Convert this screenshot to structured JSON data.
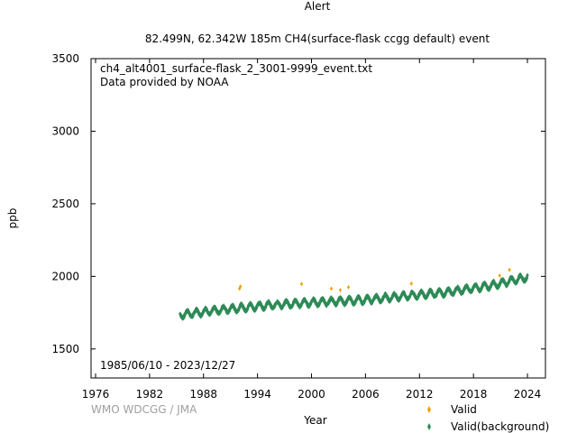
{
  "title_line1": "Alert",
  "title_line2": "82.499N, 62.342W 185m    CH4(surface-flask ccgg default) event",
  "chart_data": {
    "type": "scatter",
    "title": "Alert",
    "subtitle": "82.499N, 62.342W 185m    CH4(surface-flask ccgg default) event",
    "xlabel": "Year",
    "ylabel": "ppb",
    "xlim": [
      1975.5,
      2026
    ],
    "ylim": [
      1300,
      3500
    ],
    "x_ticks": [
      1976,
      1982,
      1988,
      1994,
      2000,
      2006,
      2012,
      2018,
      2024
    ],
    "y_ticks": [
      1500,
      2000,
      2500,
      3000,
      3500
    ],
    "annotations": [
      "ch4_alt4001_surface-flask_2_3001-9999_event.txt",
      "Data provided by NOAA",
      "1985/06/10 - 2023/12/27"
    ],
    "credit": "WMO WDCGG / JMA",
    "grid": false,
    "legend_position": "bottom-right",
    "series": [
      {
        "name": "Valid",
        "color": "#f0a000",
        "marker": "diamond",
        "points": [
          [
            1992.0,
            1915
          ],
          [
            1992.1,
            1930
          ],
          [
            1998.9,
            1948
          ],
          [
            2002.2,
            1915
          ],
          [
            2003.2,
            1905
          ],
          [
            2004.1,
            1925
          ],
          [
            2011.1,
            1950
          ],
          [
            2020.9,
            2005
          ],
          [
            2022.0,
            2045
          ]
        ]
      },
      {
        "name": "Valid(background)",
        "color": "#2e8b57",
        "marker": "diamond",
        "trend": [
          [
            1985.4,
            1735
          ],
          [
            1990,
            1770
          ],
          [
            1995,
            1800
          ],
          [
            2000,
            1820
          ],
          [
            2006,
            1838
          ],
          [
            2010,
            1863
          ],
          [
            2015,
            1890
          ],
          [
            2020,
            1938
          ],
          [
            2024,
            1995
          ]
        ],
        "seasonal_amplitude": 22,
        "sample_range": [
          1985.4,
          2024.0
        ]
      }
    ]
  }
}
